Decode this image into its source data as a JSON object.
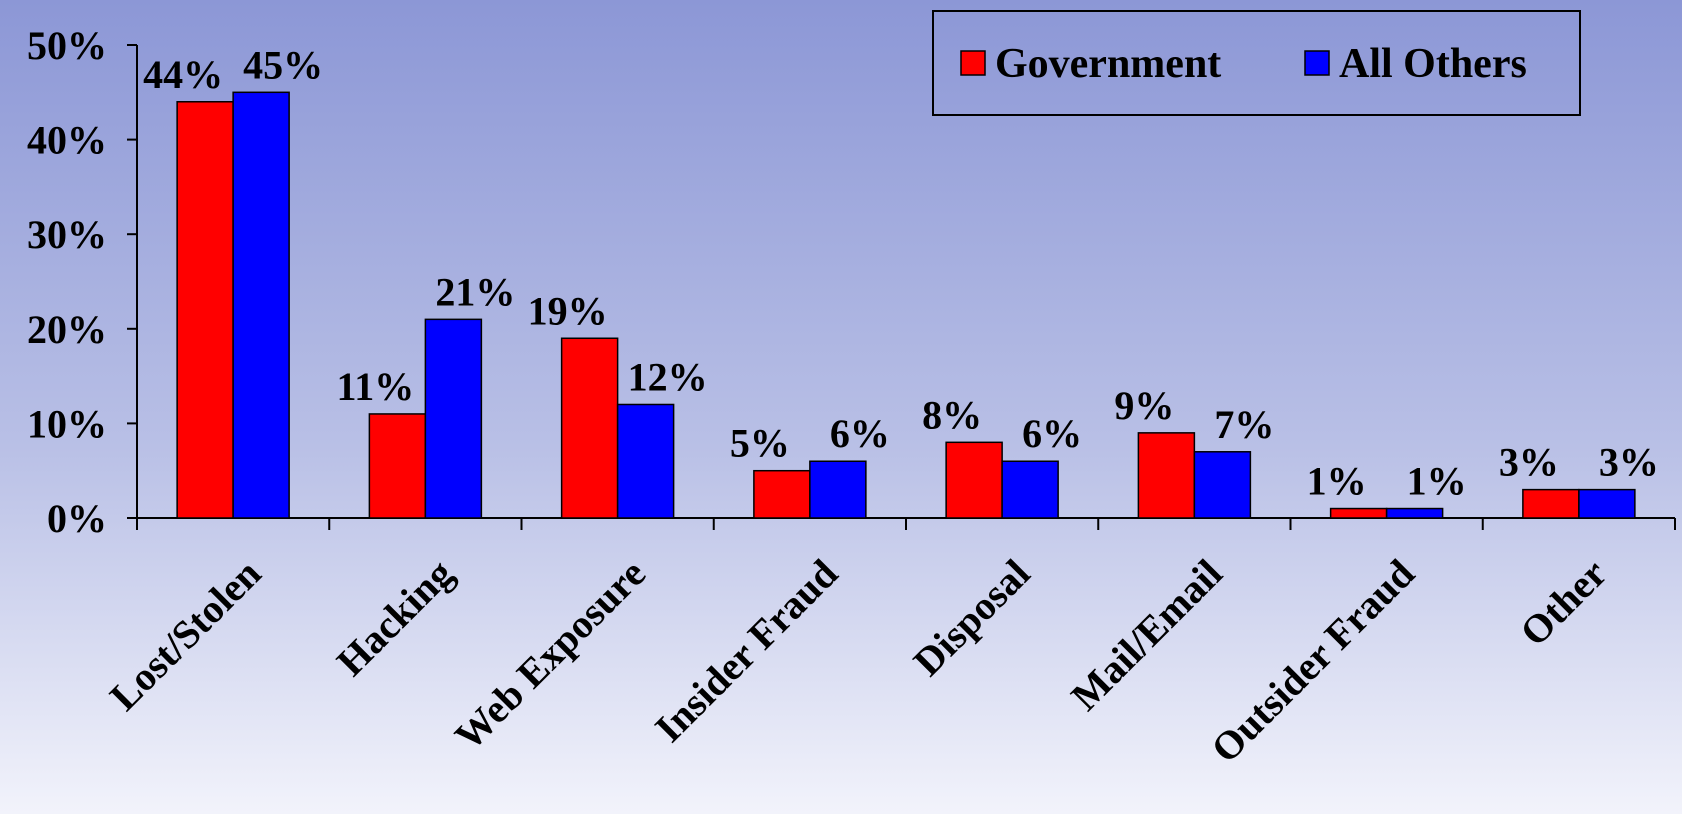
{
  "chart_data": {
    "type": "bar",
    "categories": [
      "Lost/Stolen",
      "Hacking",
      "Web Exposure",
      "Insider Fraud",
      "Disposal",
      "Mail/Email",
      "Outsider Fraud",
      "Other"
    ],
    "series": [
      {
        "name": "Government",
        "color": "#ff0000",
        "values": [
          44,
          11,
          19,
          5,
          8,
          9,
          1,
          3
        ],
        "value_labels": [
          "44%",
          "11%",
          "19%",
          "5%",
          "8%",
          "9%",
          "1%",
          "3%"
        ]
      },
      {
        "name": "All Others",
        "color": "#0000ff",
        "values": [
          45,
          21,
          12,
          6,
          6,
          7,
          1,
          3
        ],
        "value_labels": [
          "45%",
          "21%",
          "12%",
          "6%",
          "6%",
          "7%",
          "1%",
          "3%"
        ]
      }
    ],
    "ylim": [
      0,
      50
    ],
    "yticks": [
      {
        "value": 0,
        "label": "0%"
      },
      {
        "value": 10,
        "label": "10%"
      },
      {
        "value": 20,
        "label": "20%"
      },
      {
        "value": 30,
        "label": "30%"
      },
      {
        "value": 40,
        "label": "40%"
      },
      {
        "value": 50,
        "label": "50%"
      }
    ],
    "legend": "top-right"
  }
}
